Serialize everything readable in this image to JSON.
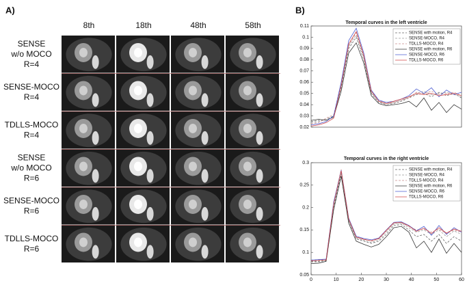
{
  "panel_a": {
    "label": "A)",
    "columns": [
      "8th",
      "18th",
      "48th",
      "58th"
    ],
    "rows": [
      [
        "SENSE",
        "w/o MOCO",
        "R=4"
      ],
      [
        "SENSE-MOCO",
        "R=4"
      ],
      [
        "TDLLS-MOCO",
        "R=4"
      ],
      [
        "SENSE",
        "w/o MOCO",
        "R=6"
      ],
      [
        "SENSE-MOCO",
        "R=6"
      ],
      [
        "TDLLS-MOCO",
        "R=6"
      ]
    ]
  },
  "panel_b": {
    "label": "B)"
  },
  "chart_data": [
    {
      "type": "line",
      "title": "Temporal curves in the left ventricle",
      "x": [
        0,
        3,
        6,
        9,
        12,
        15,
        18,
        21,
        24,
        27,
        30,
        33,
        36,
        39,
        42,
        45,
        48,
        51,
        54,
        57,
        60
      ],
      "xlim": [
        0,
        60
      ],
      "ylim": [
        0.02,
        0.11
      ],
      "yticks": [
        0.02,
        0.03,
        0.04,
        0.05,
        0.06,
        0.07,
        0.08,
        0.09,
        0.1,
        0.11
      ],
      "series": [
        {
          "name": "SENSE with motion, R4",
          "color": "#666666",
          "dashed": true,
          "values": [
            0.025,
            0.026,
            0.027,
            0.03,
            0.055,
            0.09,
            0.1,
            0.08,
            0.05,
            0.042,
            0.04,
            0.041,
            0.043,
            0.046,
            0.049,
            0.05,
            0.047,
            0.051,
            0.048,
            0.05,
            0.046
          ]
        },
        {
          "name": "SENSE-MOCO, R4",
          "color": "#999999",
          "dashed": true,
          "values": [
            0.024,
            0.025,
            0.027,
            0.029,
            0.056,
            0.092,
            0.102,
            0.082,
            0.051,
            0.043,
            0.04,
            0.042,
            0.044,
            0.047,
            0.05,
            0.052,
            0.049,
            0.05,
            0.051,
            0.049,
            0.047
          ]
        },
        {
          "name": "TDLLS-MOCO, R4",
          "color": "#c98a8a",
          "dashed": true,
          "values": [
            0.023,
            0.024,
            0.028,
            0.031,
            0.058,
            0.093,
            0.104,
            0.083,
            0.052,
            0.044,
            0.041,
            0.042,
            0.044,
            0.046,
            0.051,
            0.05,
            0.052,
            0.049,
            0.05,
            0.051,
            0.048
          ]
        },
        {
          "name": "SENSE with motion, R6",
          "color": "#333333",
          "dashed": false,
          "values": [
            0.026,
            0.027,
            0.026,
            0.029,
            0.052,
            0.086,
            0.095,
            0.077,
            0.048,
            0.041,
            0.039,
            0.04,
            0.041,
            0.043,
            0.038,
            0.046,
            0.035,
            0.042,
            0.033,
            0.04,
            0.036
          ]
        },
        {
          "name": "SENSE-MOCO, R6",
          "color": "#4a5bd0",
          "dashed": false,
          "values": [
            0.022,
            0.023,
            0.025,
            0.03,
            0.06,
            0.097,
            0.108,
            0.086,
            0.053,
            0.044,
            0.042,
            0.043,
            0.045,
            0.048,
            0.054,
            0.05,
            0.055,
            0.047,
            0.053,
            0.049,
            0.051
          ]
        },
        {
          "name": "TDLLS-MOCO, R6",
          "color": "#d04848",
          "dashed": false,
          "values": [
            0.021,
            0.022,
            0.024,
            0.028,
            0.057,
            0.094,
            0.105,
            0.084,
            0.052,
            0.043,
            0.041,
            0.043,
            0.045,
            0.047,
            0.05,
            0.049,
            0.05,
            0.048,
            0.049,
            0.05,
            0.048
          ]
        }
      ]
    },
    {
      "type": "line",
      "title": "Temporal curves in the right ventricle",
      "x": [
        0,
        3,
        6,
        9,
        12,
        15,
        18,
        21,
        24,
        27,
        30,
        33,
        36,
        39,
        42,
        45,
        48,
        51,
        54,
        57,
        60
      ],
      "xlim": [
        0,
        60
      ],
      "xticks": [
        0,
        10,
        20,
        30,
        40,
        50,
        60
      ],
      "ylim": [
        0.05,
        0.3
      ],
      "yticks": [
        0.05,
        0.1,
        0.15,
        0.2,
        0.25,
        0.3
      ],
      "series": [
        {
          "name": "SENSE with motion, R4",
          "color": "#666666",
          "dashed": true,
          "values": [
            0.08,
            0.08,
            0.082,
            0.2,
            0.275,
            0.17,
            0.13,
            0.125,
            0.12,
            0.125,
            0.14,
            0.16,
            0.162,
            0.15,
            0.135,
            0.14,
            0.125,
            0.14,
            0.12,
            0.135,
            0.125
          ]
        },
        {
          "name": "SENSE-MOCO, R4",
          "color": "#999999",
          "dashed": true,
          "values": [
            0.078,
            0.079,
            0.081,
            0.205,
            0.28,
            0.172,
            0.132,
            0.127,
            0.122,
            0.128,
            0.145,
            0.163,
            0.165,
            0.155,
            0.145,
            0.15,
            0.14,
            0.15,
            0.135,
            0.148,
            0.14
          ]
        },
        {
          "name": "TDLLS-MOCO, R4",
          "color": "#c98a8a",
          "dashed": true,
          "values": [
            0.082,
            0.083,
            0.084,
            0.21,
            0.285,
            0.175,
            0.135,
            0.13,
            0.125,
            0.13,
            0.148,
            0.165,
            0.166,
            0.158,
            0.15,
            0.152,
            0.145,
            0.152,
            0.142,
            0.15,
            0.145
          ]
        },
        {
          "name": "SENSE with motion, R6",
          "color": "#333333",
          "dashed": false,
          "values": [
            0.075,
            0.076,
            0.08,
            0.195,
            0.27,
            0.165,
            0.125,
            0.118,
            0.112,
            0.118,
            0.135,
            0.155,
            0.158,
            0.145,
            0.11,
            0.125,
            0.1,
            0.13,
            0.098,
            0.12,
            0.1
          ]
        },
        {
          "name": "SENSE-MOCO, R6",
          "color": "#4a5bd0",
          "dashed": false,
          "values": [
            0.083,
            0.084,
            0.085,
            0.212,
            0.283,
            0.176,
            0.136,
            0.131,
            0.128,
            0.132,
            0.15,
            0.167,
            0.168,
            0.16,
            0.148,
            0.158,
            0.138,
            0.16,
            0.14,
            0.155,
            0.145
          ]
        },
        {
          "name": "TDLLS-MOCO, R6",
          "color": "#d04848",
          "dashed": false,
          "values": [
            0.081,
            0.082,
            0.083,
            0.208,
            0.282,
            0.174,
            0.134,
            0.129,
            0.126,
            0.131,
            0.149,
            0.166,
            0.167,
            0.159,
            0.147,
            0.154,
            0.142,
            0.155,
            0.143,
            0.152,
            0.147
          ]
        }
      ]
    }
  ]
}
